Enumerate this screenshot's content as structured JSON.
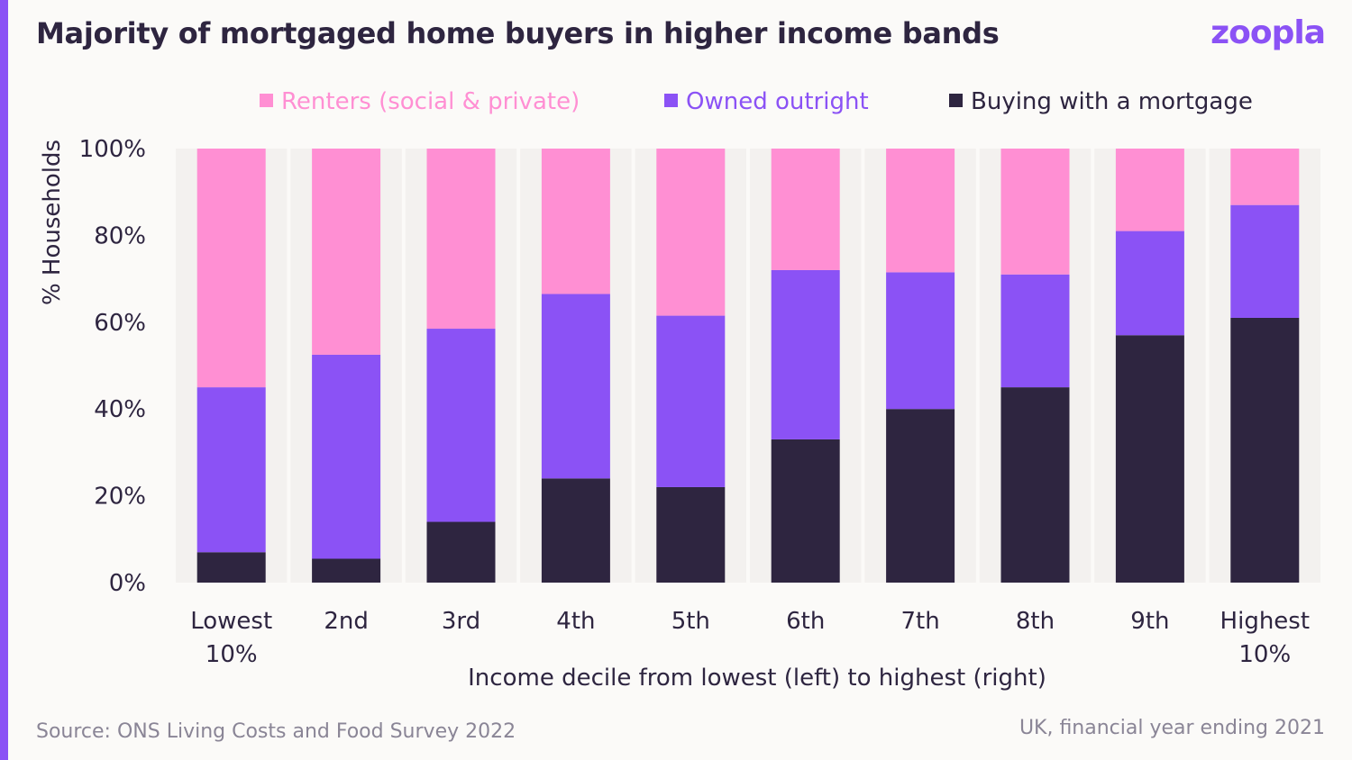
{
  "title": "Majority of mortgaged home buyers in higher income bands",
  "logo": "zoopla",
  "source": "Source: ONS Living Costs and Food Survey 2022",
  "note": "UK, financial year ending 2021",
  "colors": {
    "renters": "#ff8fd3",
    "owned": "#8b52f5",
    "mortgage": "#2e2540",
    "column_band": "#f3f1ef",
    "accent": "#8b52f5"
  },
  "chart_data": {
    "type": "bar",
    "stacked": true,
    "categories": [
      [
        "Lowest",
        "10%"
      ],
      [
        "2nd"
      ],
      [
        "3rd"
      ],
      [
        "4th"
      ],
      [
        "5th"
      ],
      [
        "6th"
      ],
      [
        "7th"
      ],
      [
        "8th"
      ],
      [
        "9th"
      ],
      [
        "Highest",
        "10%"
      ]
    ],
    "series": [
      {
        "name": "Buying with a mortgage",
        "key": "mortgage",
        "values": [
          7,
          5.5,
          14,
          24,
          22,
          33,
          40,
          45,
          57,
          61
        ]
      },
      {
        "name": "Owned outright",
        "key": "owned",
        "values": [
          38,
          47,
          44.5,
          42.5,
          39.5,
          39,
          31.5,
          26,
          24,
          26
        ]
      },
      {
        "name": "Renters (social & private)",
        "key": "renters",
        "values": [
          55,
          47.5,
          41.5,
          33.5,
          38.5,
          28,
          28.5,
          29,
          19,
          13
        ]
      }
    ],
    "legend_order": [
      "renters",
      "owned",
      "mortgage"
    ],
    "legend_position": "top",
    "xlabel": "Income decile from lowest (left) to highest (right)",
    "ylabel": "% Households",
    "ylim": [
      0,
      100
    ],
    "yticks": [
      "0%",
      "20%",
      "40%",
      "60%",
      "80%",
      "100%"
    ],
    "ytick_values": [
      0,
      20,
      40,
      60,
      80,
      100
    ]
  }
}
